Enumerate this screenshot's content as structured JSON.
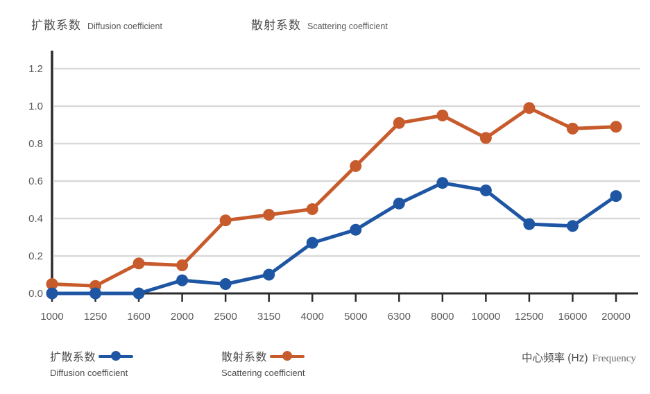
{
  "header": {
    "title_diffusion_zh": "扩散系数",
    "title_diffusion_en": "Diffusion coefficient",
    "title_scattering_zh": "散射系数",
    "title_scattering_en": "Scattering coefficient"
  },
  "legend": {
    "diffusion": {
      "zh": "扩散系数",
      "en": "Diffusion coefficient",
      "color": "#1e56a3"
    },
    "scattering": {
      "zh": "散射系数",
      "en": "Scattering coefficient",
      "color": "#c75b2c"
    }
  },
  "x_axis_title": {
    "zh": "中心频率 (Hz)",
    "en": "Frequency"
  },
  "colors": {
    "diffusion_blue": "#1e56a3",
    "scattering_orange": "#c75b2c",
    "axis": "#2b2b2b",
    "gridline": "#d9d9d9",
    "tick_label": "#5a5a5a"
  },
  "chart_data": {
    "type": "line",
    "title": "扩散系数 Diffusion coefficient / 散射系数 Scattering coefficient",
    "xlabel": "中心频率 (Hz) Frequency",
    "ylabel": "",
    "categories": [
      "1000",
      "1250",
      "1600",
      "2000",
      "2500",
      "3150",
      "4000",
      "5000",
      "6300",
      "8000",
      "10000",
      "12500",
      "16000",
      "20000"
    ],
    "series": [
      {
        "name": "散射系数 Scattering coefficient",
        "key": "scattering",
        "color": "#c75b2c",
        "values": [
          0.05,
          0.04,
          0.16,
          0.15,
          0.39,
          0.42,
          0.45,
          0.68,
          0.91,
          0.95,
          0.83,
          0.99,
          0.88,
          0.89
        ]
      },
      {
        "name": "扩散系数 Diffusion coefficient",
        "key": "diffusion",
        "color": "#1e56a3",
        "values": [
          0.0,
          0.0,
          0.0,
          0.07,
          0.05,
          0.1,
          0.27,
          0.34,
          0.48,
          0.59,
          0.55,
          0.37,
          0.36,
          0.52
        ]
      }
    ],
    "y_ticks": [
      0.0,
      0.2,
      0.4,
      0.6,
      0.8,
      1.0,
      1.2
    ],
    "y_tick_labels": [
      "0.0",
      "0.2",
      "0.4",
      "0.6",
      "0.8",
      "1.0",
      "1.2"
    ],
    "ylim": [
      0,
      1.3
    ],
    "grid": true,
    "grid_axis": "y",
    "legend_position": "bottom"
  }
}
